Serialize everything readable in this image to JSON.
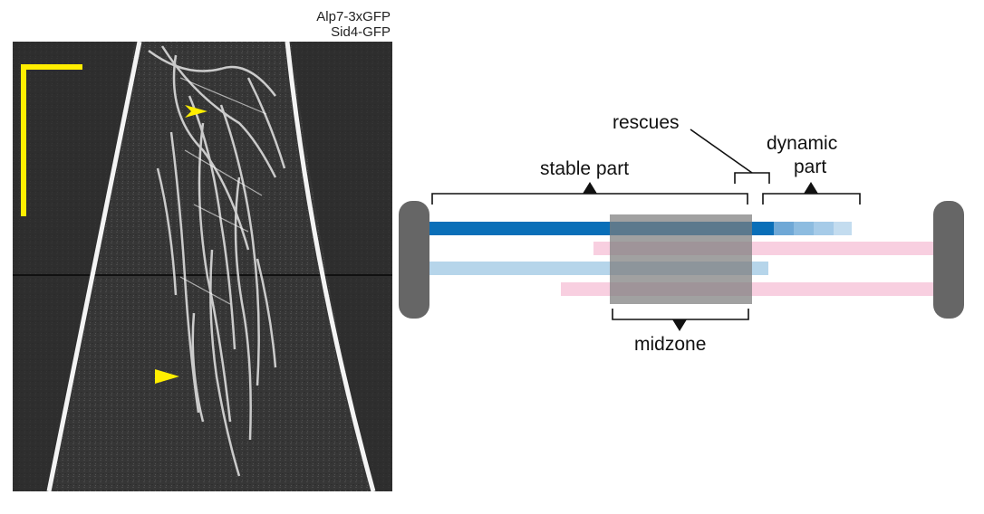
{
  "kymograph": {
    "channel_labels": [
      "Alp7-3xGFP",
      "Sid4-GFP"
    ],
    "scale_bar_color": "#ffee00",
    "arrowhead_color": "#ffee00"
  },
  "diagram": {
    "labels": {
      "rescues": "rescues",
      "stable_part": "stable part",
      "dynamic_part_line1": "dynamic",
      "dynamic_part_line2": "part",
      "midzone": "midzone"
    },
    "colors": {
      "spindle_pole": "#666666",
      "microtubule_dark_blue": "#0a6fb8",
      "microtubule_light_blue": "#b6d5ea",
      "microtubule_pink": "#f8cfe0",
      "midzone_overlay": "#8c8c8c"
    }
  }
}
